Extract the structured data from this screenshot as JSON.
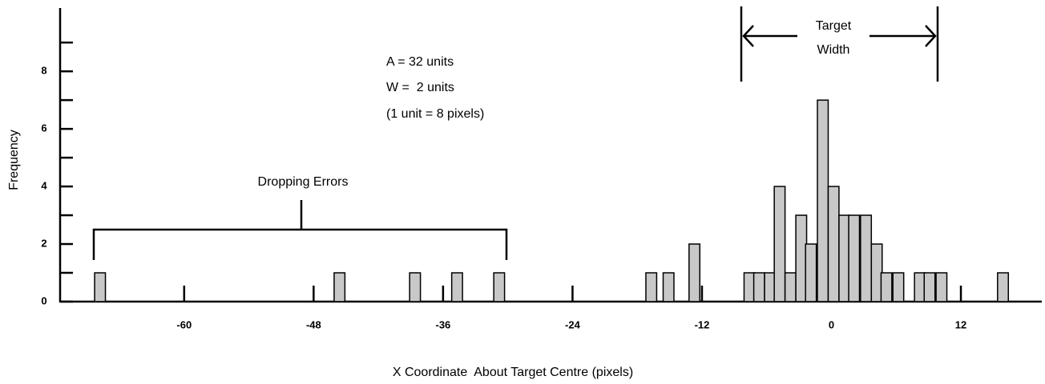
{
  "chart_data": {
    "type": "bar",
    "x_label": "X Coordinate  About Target Centre (pixels)",
    "y_label": "Frequency",
    "annotations": [
      "A = 32 units",
      "W =  2 units",
      "(1 unit = 8 pixels)",
      "Dropping Errors",
      "Target",
      "Width"
    ],
    "x": [
      -67.8,
      -45.6,
      -38.6,
      -34.7,
      -30.8,
      -16.7,
      -15.1,
      -12.7,
      -7.6,
      -6.7,
      -5.7,
      -4.8,
      -3.8,
      -2.8,
      -1.9,
      -0.8,
      0.2,
      1.2,
      2.1,
      3.2,
      4.2,
      5.1,
      6.2,
      8.2,
      9.1,
      10.2,
      15.9
    ],
    "values": [
      1,
      1,
      1,
      1,
      1,
      1,
      1,
      2,
      1,
      1,
      1,
      4,
      1,
      3,
      2,
      7,
      4,
      3,
      3,
      3,
      2,
      1,
      1,
      1,
      1,
      1,
      1
    ],
    "bar_width": 1,
    "color": "#c8c8c8",
    "xlim": [
      -71.5,
      19.5
    ],
    "xticks": [
      -60,
      -48,
      -36,
      -24,
      -12,
      0,
      12
    ],
    "ylim": [
      0,
      10.2
    ],
    "yticks": [
      0,
      2,
      4,
      6,
      8
    ],
    "yticks_minor": [
      1,
      3,
      5,
      7,
      9
    ]
  }
}
